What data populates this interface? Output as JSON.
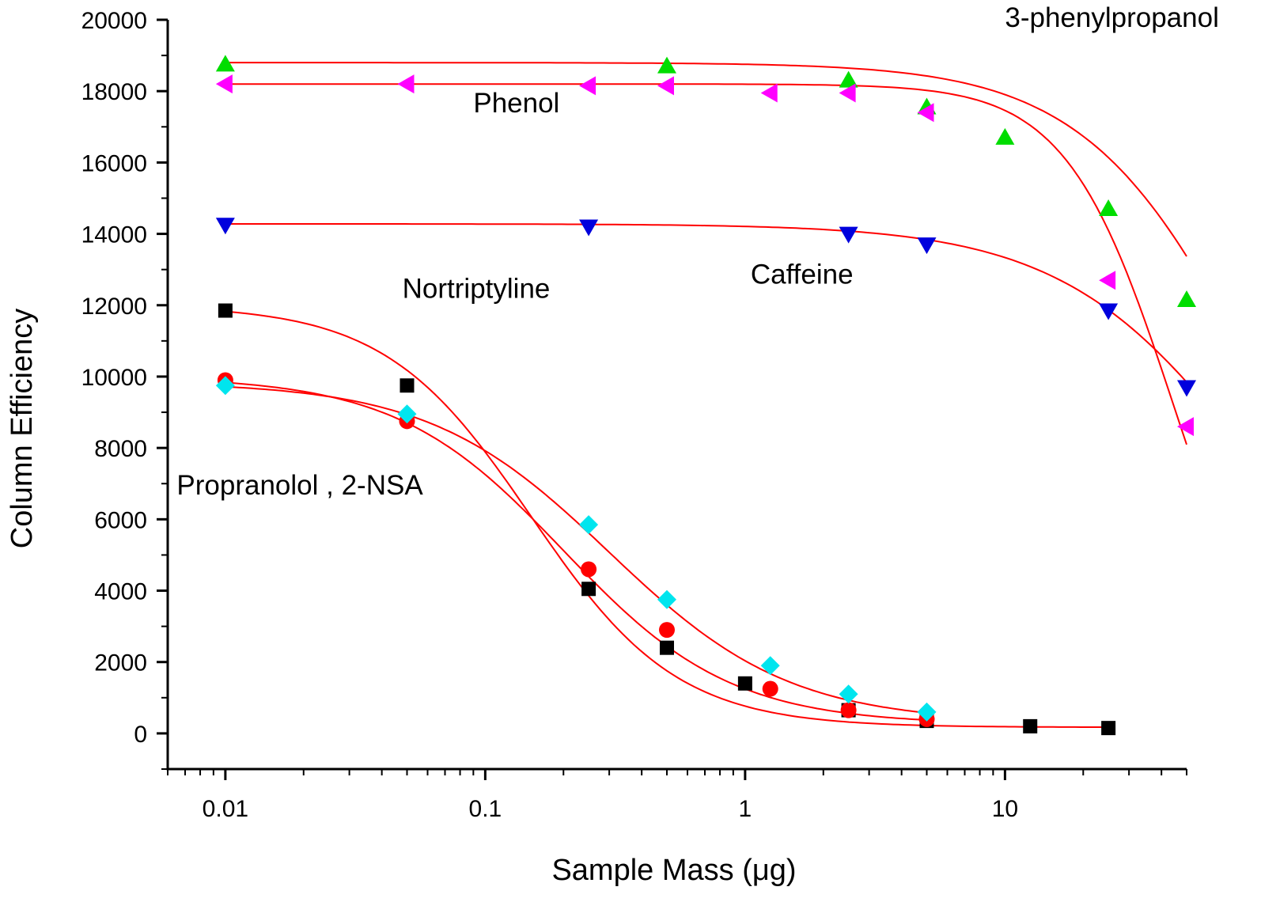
{
  "chart_data": {
    "type": "scatter",
    "title": "",
    "xlabel": "Sample Mass (μg)",
    "ylabel": "Column Efficiency",
    "x_scale": "log",
    "xlim": [
      0.006,
      50
    ],
    "ylim": [
      -1000,
      20000
    ],
    "x_ticks": [
      {
        "value": 0.01,
        "label": "0.01"
      },
      {
        "value": 0.1,
        "label": "0.1"
      },
      {
        "value": 1,
        "label": "1"
      },
      {
        "value": 10,
        "label": "10"
      }
    ],
    "y_ticks": [
      {
        "value": 0,
        "label": "0"
      },
      {
        "value": 2000,
        "label": "2000"
      },
      {
        "value": 4000,
        "label": "4000"
      },
      {
        "value": 6000,
        "label": "6000"
      },
      {
        "value": 8000,
        "label": "8000"
      },
      {
        "value": 10000,
        "label": "10000"
      },
      {
        "value": 12000,
        "label": "12000"
      },
      {
        "value": 14000,
        "label": "14000"
      },
      {
        "value": 16000,
        "label": "16000"
      },
      {
        "value": 18000,
        "label": "18000"
      },
      {
        "value": 20000,
        "label": "20000"
      }
    ],
    "grid": false,
    "legend": "none",
    "fit_color": "#ff0000",
    "series": [
      {
        "name": "3-phenylpropanol",
        "marker": "triangle-up",
        "color": "#00dd00",
        "x": [
          0.01,
          0.5,
          2.5,
          5,
          10,
          25,
          50
        ],
        "y": [
          18750,
          18700,
          18300,
          17550,
          16700,
          14700,
          12150
        ],
        "fit": {
          "top": 18800,
          "x0": 100,
          "hill": 1.3
        }
      },
      {
        "name": "Phenol",
        "marker": "triangle-left",
        "color": "#ff00ff",
        "x": [
          0.01,
          0.05,
          0.25,
          0.5,
          1.25,
          2.5,
          5,
          25,
          50
        ],
        "y": [
          18200,
          18200,
          18150,
          18150,
          17950,
          17950,
          17400,
          12700,
          8600
        ],
        "fit": {
          "top": 18200,
          "x0": 45,
          "hill": 2.1
        }
      },
      {
        "name": "Caffeine",
        "marker": "triangle-down",
        "color": "#0000dd",
        "x": [
          0.01,
          0.25,
          2.5,
          5,
          25,
          50
        ],
        "y": [
          14250,
          14200,
          14000,
          13700,
          11850,
          9700
        ],
        "fit": {
          "top": 14280,
          "x0": 100,
          "hill": 1.15
        }
      },
      {
        "name": "Nortriptyline",
        "marker": "square",
        "color": "#000000",
        "x": [
          0.01,
          0.05,
          0.25,
          0.5,
          1,
          2.5,
          5,
          12.5,
          25
        ],
        "y": [
          11850,
          9750,
          4050,
          2400,
          1400,
          650,
          350,
          200,
          150
        ],
        "fit": {
          "top": 12000,
          "bottom": 170,
          "x0": 0.15,
          "hill": 1.55
        }
      },
      {
        "name": "Propranolol",
        "marker": "circle",
        "color": "#ff0000",
        "x": [
          0.01,
          0.05,
          0.25,
          0.5,
          1.25,
          2.5,
          5
        ],
        "y": [
          9900,
          8750,
          4600,
          2900,
          1250,
          650,
          400
        ],
        "fit": {
          "top": 10000,
          "bottom": 250,
          "x0": 0.2,
          "hill": 1.35
        }
      },
      {
        "name": "2-NSA",
        "marker": "diamond",
        "color": "#00e5ee",
        "x": [
          0.01,
          0.05,
          0.25,
          0.5,
          1.25,
          2.5,
          5
        ],
        "y": [
          9750,
          8950,
          5850,
          3750,
          1900,
          1100,
          600
        ],
        "fit": {
          "top": 9850,
          "bottom": 300,
          "x0": 0.3,
          "hill": 1.25
        }
      }
    ],
    "annotations": [
      {
        "text": "3-phenylpropanol",
        "x": 10,
        "y": 19800
      },
      {
        "text": "Phenol",
        "x": 0.09,
        "y": 17400
      },
      {
        "text": "Nortriptyline",
        "x": 0.048,
        "y": 12200
      },
      {
        "text": "Caffeine",
        "x": 1.05,
        "y": 12600
      },
      {
        "text": "Propranolol ,  2-NSA",
        "x": 0.0065,
        "y": 6700
      }
    ]
  }
}
